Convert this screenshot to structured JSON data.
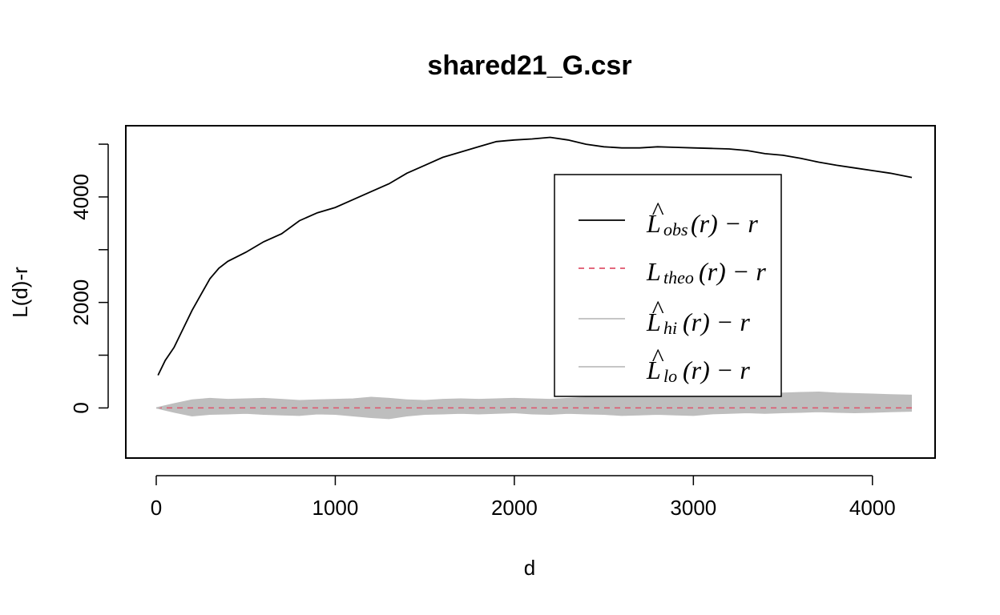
{
  "chart_data": {
    "type": "line",
    "title": "shared21_G.csr",
    "xlabel": "d",
    "ylabel": "L(d)-r",
    "xlim": [
      -170,
      4350
    ],
    "ylim": [
      -950,
      5350
    ],
    "x_ticks": [
      0,
      1000,
      2000,
      3000,
      4000
    ],
    "y_ticks": [
      0,
      2000,
      4000
    ],
    "grid": false,
    "legend_position": "top-right",
    "legend": [
      {
        "label": "L",
        "hat": true,
        "sub": "obs",
        "tail": "(r) − r",
        "style": "solid",
        "color": "#000000"
      },
      {
        "label": "L",
        "hat": false,
        "sub": "theo",
        "tail": "(r) − r",
        "style": "dashed",
        "color": "#DF536B"
      },
      {
        "label": "L",
        "hat": true,
        "sub": "hi",
        "tail": "(r) − r",
        "style": "solid",
        "color": "#BEBEBE"
      },
      {
        "label": "L",
        "hat": true,
        "sub": "lo",
        "tail": "(r) − r",
        "style": "solid",
        "color": "#BEBEBE"
      }
    ],
    "series": [
      {
        "key": "obs",
        "color": "#000000",
        "style": "solid",
        "points": [
          [
            10,
            620
          ],
          [
            50,
            900
          ],
          [
            100,
            1150
          ],
          [
            150,
            1500
          ],
          [
            200,
            1850
          ],
          [
            250,
            2150
          ],
          [
            300,
            2450
          ],
          [
            350,
            2650
          ],
          [
            400,
            2780
          ],
          [
            500,
            2950
          ],
          [
            600,
            3150
          ],
          [
            700,
            3300
          ],
          [
            800,
            3550
          ],
          [
            900,
            3700
          ],
          [
            1000,
            3800
          ],
          [
            1100,
            3950
          ],
          [
            1200,
            4100
          ],
          [
            1300,
            4250
          ],
          [
            1400,
            4450
          ],
          [
            1500,
            4600
          ],
          [
            1600,
            4750
          ],
          [
            1700,
            4850
          ],
          [
            1800,
            4950
          ],
          [
            1900,
            5050
          ],
          [
            2000,
            5080
          ],
          [
            2100,
            5100
          ],
          [
            2200,
            5130
          ],
          [
            2300,
            5080
          ],
          [
            2400,
            5000
          ],
          [
            2500,
            4950
          ],
          [
            2600,
            4930
          ],
          [
            2700,
            4930
          ],
          [
            2800,
            4950
          ],
          [
            2900,
            4940
          ],
          [
            3000,
            4930
          ],
          [
            3100,
            4920
          ],
          [
            3200,
            4910
          ],
          [
            3300,
            4880
          ],
          [
            3400,
            4820
          ],
          [
            3500,
            4790
          ],
          [
            3600,
            4730
          ],
          [
            3700,
            4660
          ],
          [
            3800,
            4600
          ],
          [
            3900,
            4550
          ],
          [
            4000,
            4500
          ],
          [
            4100,
            4450
          ],
          [
            4220,
            4370
          ]
        ]
      },
      {
        "key": "theo",
        "color": "#DF536B",
        "style": "dashed",
        "points": [
          [
            0,
            0
          ],
          [
            4220,
            0
          ]
        ]
      },
      {
        "key": "hi",
        "color": "#BEBEBE",
        "style": "solid",
        "points": [
          [
            0,
            0
          ],
          [
            100,
            80
          ],
          [
            200,
            150
          ],
          [
            300,
            180
          ],
          [
            400,
            160
          ],
          [
            500,
            170
          ],
          [
            600,
            180
          ],
          [
            700,
            160
          ],
          [
            800,
            140
          ],
          [
            900,
            150
          ],
          [
            1000,
            160
          ],
          [
            1100,
            170
          ],
          [
            1200,
            200
          ],
          [
            1300,
            180
          ],
          [
            1400,
            150
          ],
          [
            1500,
            140
          ],
          [
            1600,
            160
          ],
          [
            1700,
            170
          ],
          [
            1800,
            160
          ],
          [
            1900,
            170
          ],
          [
            2000,
            180
          ],
          [
            2100,
            170
          ],
          [
            2200,
            160
          ],
          [
            2300,
            180
          ],
          [
            2400,
            200
          ],
          [
            2500,
            210
          ],
          [
            2600,
            200
          ],
          [
            2700,
            220
          ],
          [
            2800,
            210
          ],
          [
            2900,
            230
          ],
          [
            3000,
            250
          ],
          [
            3100,
            240
          ],
          [
            3200,
            220
          ],
          [
            3300,
            200
          ],
          [
            3400,
            260
          ],
          [
            3500,
            280
          ],
          [
            3600,
            290
          ],
          [
            3700,
            300
          ],
          [
            3800,
            280
          ],
          [
            3900,
            270
          ],
          [
            4000,
            260
          ],
          [
            4100,
            250
          ],
          [
            4220,
            240
          ]
        ]
      },
      {
        "key": "lo",
        "color": "#BEBEBE",
        "style": "solid",
        "points": [
          [
            0,
            0
          ],
          [
            100,
            -80
          ],
          [
            200,
            -150
          ],
          [
            300,
            -120
          ],
          [
            400,
            -110
          ],
          [
            500,
            -100
          ],
          [
            600,
            -120
          ],
          [
            700,
            -130
          ],
          [
            800,
            -140
          ],
          [
            900,
            -110
          ],
          [
            1000,
            -120
          ],
          [
            1100,
            -150
          ],
          [
            1200,
            -180
          ],
          [
            1300,
            -200
          ],
          [
            1400,
            -150
          ],
          [
            1500,
            -120
          ],
          [
            1600,
            -110
          ],
          [
            1700,
            -100
          ],
          [
            1800,
            -110
          ],
          [
            1900,
            -100
          ],
          [
            2000,
            -90
          ],
          [
            2100,
            -110
          ],
          [
            2200,
            -120
          ],
          [
            2300,
            -100
          ],
          [
            2400,
            -110
          ],
          [
            2500,
            -120
          ],
          [
            2600,
            -140
          ],
          [
            2700,
            -130
          ],
          [
            2800,
            -120
          ],
          [
            2900,
            -130
          ],
          [
            3000,
            -140
          ],
          [
            3100,
            -110
          ],
          [
            3200,
            -100
          ],
          [
            3300,
            -90
          ],
          [
            3400,
            -100
          ],
          [
            3500,
            -90
          ],
          [
            3600,
            -80
          ],
          [
            3700,
            -70
          ],
          [
            3800,
            -80
          ],
          [
            3900,
            -90
          ],
          [
            4000,
            -80
          ],
          [
            4100,
            -70
          ],
          [
            4220,
            -60
          ]
        ]
      }
    ]
  }
}
